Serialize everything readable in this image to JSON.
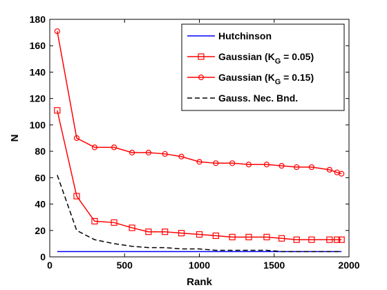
{
  "chart_data": {
    "type": "line",
    "title": "",
    "xlabel": "Rank",
    "ylabel": "N",
    "xlim": [
      0,
      2000
    ],
    "ylim": [
      0,
      180
    ],
    "xticks": [
      0,
      500,
      1000,
      1500,
      2000
    ],
    "yticks": [
      0,
      20,
      40,
      60,
      80,
      100,
      120,
      140,
      160,
      180
    ],
    "grid": false,
    "legend_position": "top-right",
    "series": [
      {
        "name": "Hutchinson",
        "color": "#0000ff",
        "line_style": "solid",
        "marker": "none",
        "x": [
          50,
          1950
        ],
        "y": [
          4,
          4
        ]
      },
      {
        "name": "Gaussian (K",
        "name_sub": "G",
        "name_tail": " = 0.05)",
        "color": "#ff0000",
        "line_style": "solid",
        "marker": "square",
        "x": [
          50,
          180,
          300,
          430,
          550,
          660,
          770,
          880,
          1000,
          1110,
          1220,
          1330,
          1450,
          1550,
          1650,
          1750,
          1870,
          1920,
          1950
        ],
        "y": [
          111,
          46,
          27,
          26,
          22,
          19,
          19,
          18,
          17,
          16,
          15,
          15,
          15,
          14,
          13,
          13,
          13,
          13,
          13
        ]
      },
      {
        "name": "Gaussian (K",
        "name_sub": "G",
        "name_tail": " = 0.15)",
        "color": "#ff0000",
        "line_style": "solid",
        "marker": "circle",
        "x": [
          50,
          180,
          300,
          430,
          550,
          660,
          770,
          880,
          1000,
          1110,
          1220,
          1330,
          1450,
          1550,
          1650,
          1750,
          1870,
          1920,
          1950
        ],
        "y": [
          171,
          90,
          83,
          83,
          79,
          79,
          78,
          76,
          72,
          71,
          71,
          70,
          70,
          69,
          68,
          68,
          66,
          64,
          63
        ]
      },
      {
        "name": "Gauss. Nec. Bnd.",
        "color": "#000000",
        "line_style": "dashed",
        "marker": "none",
        "x": [
          50,
          180,
          300,
          430,
          550,
          660,
          770,
          880,
          1000,
          1110,
          1220,
          1330,
          1450,
          1550,
          1650,
          1750,
          1870,
          1950
        ],
        "y": [
          62,
          20,
          13,
          10,
          8,
          7,
          7,
          6,
          6,
          5,
          5,
          5,
          5,
          4,
          4,
          4,
          4,
          4
        ]
      }
    ]
  }
}
